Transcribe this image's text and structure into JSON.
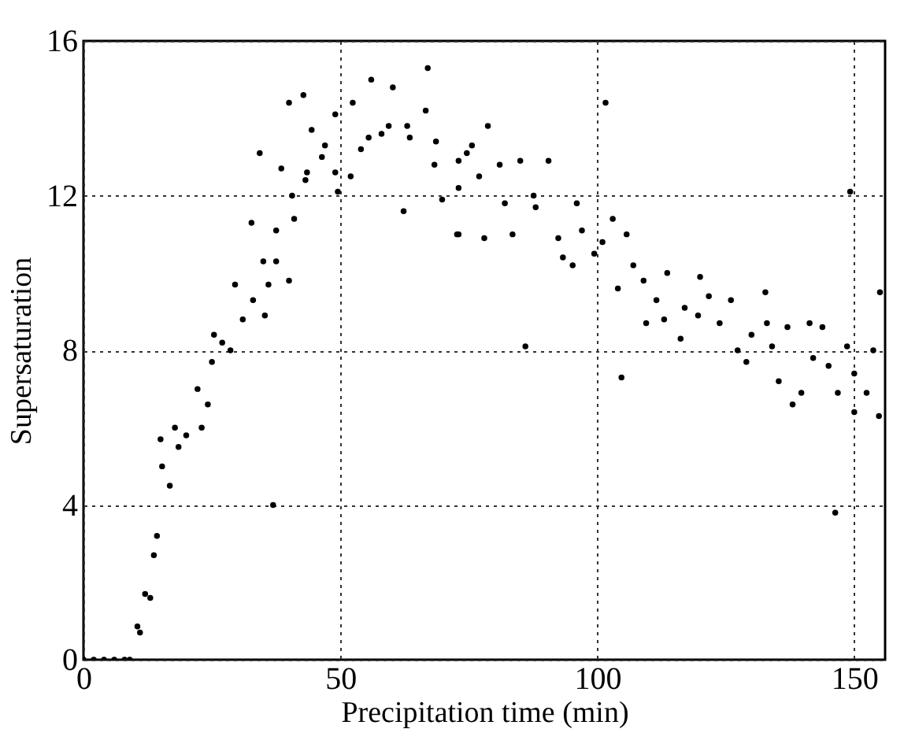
{
  "chart_data": {
    "type": "scatter",
    "xlabel": "Precipitation time (min)",
    "ylabel": "Supersaturation",
    "xlim": [
      0,
      156
    ],
    "ylim": [
      0,
      16
    ],
    "xticks": [
      0,
      50,
      100,
      150
    ],
    "yticks": [
      0,
      4,
      8,
      12,
      16
    ],
    "grid": true,
    "marker": "circle",
    "series": [
      {
        "color": "#000000",
        "x": [
          0,
          2,
          4,
          6,
          8,
          9,
          10.5,
          11,
          12,
          13,
          13.7,
          14.3,
          15,
          15.3,
          16.8,
          17.8,
          18.5,
          20,
          22.2,
          23,
          24.2,
          25,
          25.4,
          27,
          28.6,
          29.5,
          31,
          32.7,
          33,
          34.3,
          35.3,
          36,
          35,
          36.9,
          37.5,
          37.5,
          38.5,
          40,
          40,
          40.6,
          42.8,
          41,
          43.2,
          43.5,
          44.4,
          46.4,
          47,
          49,
          49.5,
          49,
          52.4,
          52,
          54,
          56,
          55.5,
          58,
          60.2,
          59.4,
          62.3,
          63,
          63.5,
          66.6,
          67,
          68.3,
          68.6,
          69.8,
          72.7,
          73,
          74.6,
          73,
          73,
          75.6,
          77,
          78,
          78.7,
          81,
          82,
          83.5,
          85,
          86,
          87.6,
          90.5,
          88,
          92.4,
          93.3,
          95.2,
          96,
          97,
          99.4,
          101.6,
          101,
          103,
          104,
          104.7,
          105.7,
          107,
          109,
          109.5,
          111.5,
          113,
          113.6,
          116.2,
          117,
          120,
          119.6,
          121.7,
          123.8,
          126,
          127.3,
          129,
          130,
          132.7,
          133,
          134,
          135.3,
          137,
          138,
          139.7,
          141.3,
          142,
          143.8,
          145,
          146.3,
          146.8,
          148.6,
          149.2,
          150,
          150,
          152.4,
          153.7,
          155,
          154.8
        ],
        "values": [
          0,
          0,
          0,
          0,
          0,
          0,
          0.86,
          0.7,
          1.7,
          1.6,
          2.7,
          3.2,
          5.7,
          5.0,
          4.5,
          6.0,
          5.5,
          5.8,
          7.0,
          6.0,
          6.6,
          7.7,
          8.4,
          8.2,
          8.0,
          9.7,
          8.8,
          11.3,
          9.3,
          13.1,
          8.9,
          9.7,
          10.3,
          4.0,
          11.1,
          10.3,
          12.7,
          9.8,
          14.4,
          12.0,
          14.6,
          11.4,
          12.4,
          12.6,
          13.7,
          13.0,
          13.3,
          12.6,
          12.1,
          14.1,
          14.4,
          12.5,
          13.2,
          15.0,
          13.5,
          13.6,
          14.8,
          13.8,
          11.6,
          13.8,
          13.5,
          14.2,
          15.3,
          12.8,
          13.4,
          11.9,
          11.0,
          12.2,
          13.1,
          12.9,
          11.0,
          13.3,
          12.5,
          10.9,
          13.8,
          12.8,
          11.8,
          11.0,
          12.9,
          8.1,
          12.0,
          12.9,
          11.7,
          10.9,
          10.4,
          10.2,
          11.8,
          11.1,
          10.5,
          14.4,
          10.8,
          11.4,
          9.6,
          7.3,
          11.0,
          10.2,
          9.8,
          8.7,
          9.3,
          8.8,
          10.0,
          8.3,
          9.1,
          9.9,
          8.9,
          9.4,
          8.7,
          9.3,
          8.0,
          7.7,
          8.4,
          9.5,
          8.7,
          8.1,
          7.2,
          8.6,
          6.6,
          6.9,
          8.7,
          7.8,
          8.6,
          7.6,
          3.8,
          6.9,
          8.1,
          12.1,
          7.4,
          6.4,
          6.9,
          8.0,
          9.5,
          6.3
        ]
      }
    ]
  }
}
